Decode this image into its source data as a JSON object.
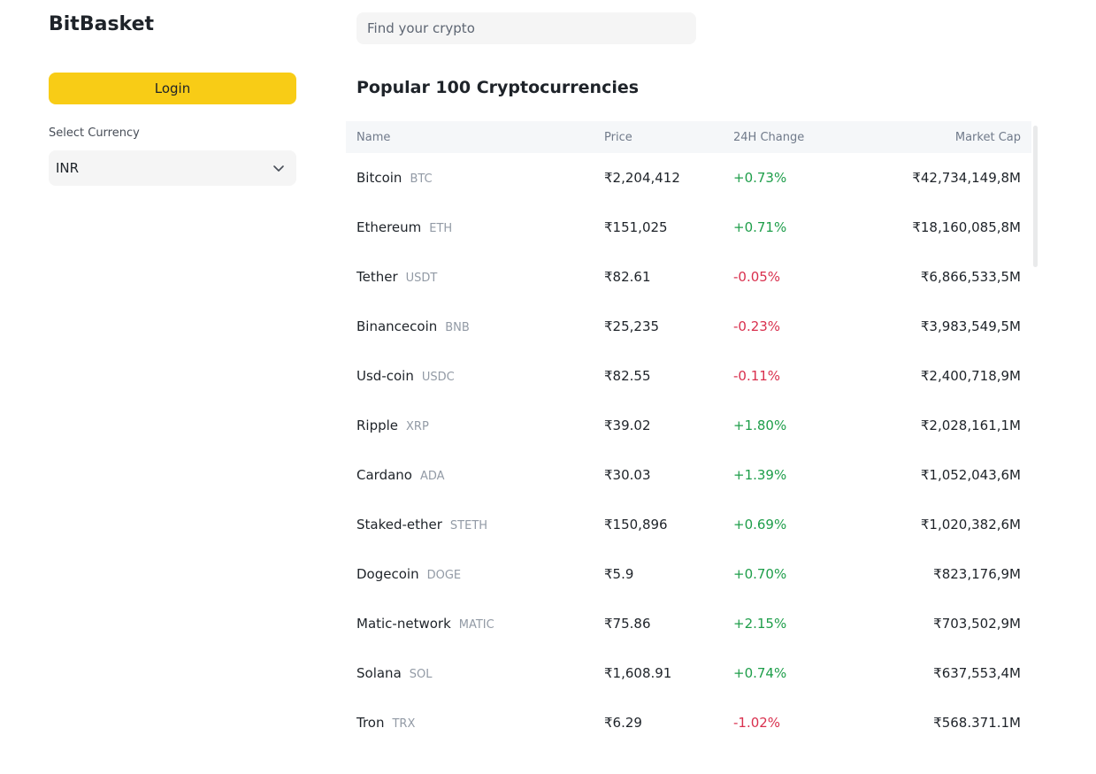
{
  "app": {
    "title": "BitBasket"
  },
  "sidebar": {
    "login_label": "Login",
    "currency_label": "Select Currency",
    "currency_value": "INR"
  },
  "search": {
    "placeholder": "Find your crypto"
  },
  "main": {
    "heading": "Popular 100 Cryptocurrencies"
  },
  "table": {
    "headers": {
      "name": "Name",
      "price": "Price",
      "change": "24H Change",
      "cap": "Market Cap"
    },
    "rows": [
      {
        "name": "Bitcoin",
        "symbol": "BTC",
        "price": "₹2,204,412",
        "change": "+0.73%",
        "cap": "₹42,734,149,8M",
        "trend": "up"
      },
      {
        "name": "Ethereum",
        "symbol": "ETH",
        "price": "₹151,025",
        "change": "+0.71%",
        "cap": "₹18,160,085,8M",
        "trend": "up"
      },
      {
        "name": "Tether",
        "symbol": "USDT",
        "price": "₹82.61",
        "change": "-0.05%",
        "cap": "₹6,866,533,5M",
        "trend": "down"
      },
      {
        "name": "Binancecoin",
        "symbol": "BNB",
        "price": "₹25,235",
        "change": "-0.23%",
        "cap": "₹3,983,549,5M",
        "trend": "down"
      },
      {
        "name": "Usd-coin",
        "symbol": "USDC",
        "price": "₹82.55",
        "change": "-0.11%",
        "cap": "₹2,400,718,9M",
        "trend": "down"
      },
      {
        "name": "Ripple",
        "symbol": "XRP",
        "price": "₹39.02",
        "change": "+1.80%",
        "cap": "₹2,028,161,1M",
        "trend": "up"
      },
      {
        "name": "Cardano",
        "symbol": "ADA",
        "price": "₹30.03",
        "change": "+1.39%",
        "cap": "₹1,052,043,6M",
        "trend": "up"
      },
      {
        "name": "Staked-ether",
        "symbol": "STETH",
        "price": "₹150,896",
        "change": "+0.69%",
        "cap": "₹1,020,382,6M",
        "trend": "up"
      },
      {
        "name": "Dogecoin",
        "symbol": "DOGE",
        "price": "₹5.9",
        "change": "+0.70%",
        "cap": "₹823,176,9M",
        "trend": "up"
      },
      {
        "name": "Matic-network",
        "symbol": "MATIC",
        "price": "₹75.86",
        "change": "+2.15%",
        "cap": "₹703,502,9M",
        "trend": "up"
      },
      {
        "name": "Solana",
        "symbol": "SOL",
        "price": "₹1,608.91",
        "change": "+0.74%",
        "cap": "₹637,553,4M",
        "trend": "up"
      },
      {
        "name": "Tron",
        "symbol": "TRX",
        "price": "₹6.29",
        "change": "-1.02%",
        "cap": "₹568.371.1M",
        "trend": "down"
      }
    ]
  },
  "colors": {
    "accent": "#f8cc16",
    "positive": "#1e9e4a",
    "negative": "#d9304e"
  },
  "icons": {
    "currency_dropdown": "chevron-down-icon"
  }
}
